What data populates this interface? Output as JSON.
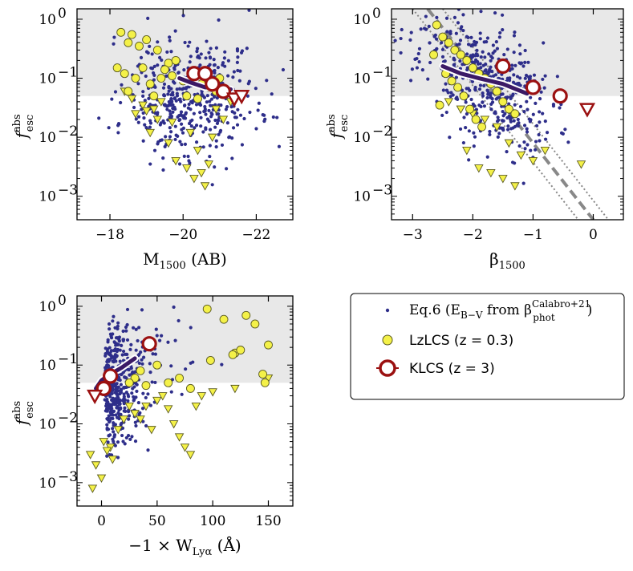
{
  "colors": {
    "shade": "#e8e8e8",
    "dots": "#2e2e8a",
    "lzlcs_fill": "#f4f148",
    "lzlcs_edge": "#5a5a20",
    "klcs": "#9b1111",
    "median_line": "#3b1a66",
    "dashed": "#888888"
  },
  "legend": {
    "entries": [
      {
        "label": "Eq.6 (E",
        "sub": "B−V",
        "mid": " from β",
        "sup": "Calabro+21",
        "sub2": "phot",
        "tail": ")",
        "marker": "dot-icon"
      },
      {
        "label": "LzLCS (z = 0.3)",
        "marker": "yellow-circle-icon"
      },
      {
        "label": "KLCS (z = 3)",
        "marker": "red-ring-icon"
      }
    ]
  },
  "chart_data": [
    {
      "type": "scatter",
      "ylabel": "f",
      "ylabel_sup": "abs",
      "ylabel_sub": "esc",
      "xlabel": "M",
      "xlabel_sub": "1500",
      "xlabel_tail": " (AB)",
      "xlim": [
        -17.1,
        -23.0
      ],
      "ylim": [
        0.0004,
        1.5
      ],
      "yscale": "log",
      "xticks": [
        -18,
        -20,
        -22
      ],
      "xtick_labels": [
        "−18",
        "−20",
        "−22"
      ],
      "yticks": [
        0.001,
        0.01,
        0.1,
        1
      ],
      "ytick_labels": [
        "10",
        "10",
        "10",
        "10"
      ],
      "ytick_exps": [
        "−3",
        "−2",
        "−1",
        "0"
      ],
      "shade_above": 0.05,
      "median_line": {
        "x": [
          -19.9,
          -20.2,
          -20.6,
          -21.0,
          -21.3
        ],
        "y": [
          0.1,
          0.085,
          0.07,
          0.067,
          0.065
        ]
      },
      "lzlcs_circles": {
        "x": [
          -18.2,
          -18.3,
          -18.5,
          -18.6,
          -18.8,
          -19.0,
          -19.1,
          -18.7,
          -18.9,
          -19.2,
          -19.4,
          -19.6,
          -19.8,
          -18.4,
          -18.5,
          -19.3,
          -19.5,
          -19.7,
          -20.3,
          -20.5,
          -20.7,
          -20.9,
          -20.1,
          -20.0,
          -21.0,
          -20.4
        ],
        "y": [
          0.15,
          0.6,
          0.4,
          0.55,
          0.35,
          0.45,
          0.08,
          0.1,
          0.15,
          0.05,
          0.1,
          0.18,
          0.2,
          0.12,
          0.06,
          0.3,
          0.14,
          0.11,
          0.12,
          0.08,
          0.07,
          0.06,
          0.05,
          0.09,
          0.1,
          0.045
        ]
      },
      "lzlcs_triangles": {
        "x": [
          -18.4,
          -18.6,
          -18.9,
          -19.2,
          -19.4,
          -19.1,
          -19.6,
          -19.8,
          -20.1,
          -20.3,
          -20.5,
          -20.7,
          -19.3,
          -19.0,
          -18.7,
          -20.4,
          -20.9,
          -21.1,
          -20.2,
          -20.6,
          -19.7,
          -20.8,
          -21.3
        ],
        "y": [
          0.06,
          0.045,
          0.035,
          0.03,
          0.04,
          0.012,
          0.008,
          0.004,
          0.003,
          0.002,
          0.0025,
          0.0035,
          0.02,
          0.028,
          0.025,
          0.006,
          0.03,
          0.02,
          0.012,
          0.0015,
          0.018,
          0.01,
          0.04
        ]
      },
      "klcs_circles": {
        "x": [
          -20.3,
          -20.6,
          -20.8,
          -21.1
        ],
        "y": [
          0.12,
          0.12,
          0.08,
          0.06
        ]
      },
      "klcs_triangles": {
        "x": [
          -21.4,
          -21.6
        ],
        "y": [
          0.045,
          0.05
        ]
      },
      "dots_seed": 11,
      "dots_n": 460,
      "dots_x_range": [
        -18.4,
        -22.4
      ],
      "dots_x_center": -20.2,
      "dots_x_spread": 0.9
    },
    {
      "type": "scatter",
      "ylabel": "f",
      "ylabel_sup": "abs",
      "ylabel_sub": "esc",
      "xlabel": "β",
      "xlabel_sub": "1500",
      "xlabel_tail": "",
      "xlim": [
        -3.35,
        0.5
      ],
      "ylim": [
        0.0004,
        1.5
      ],
      "yscale": "log",
      "xticks": [
        -3,
        -2,
        -1,
        0
      ],
      "xtick_labels": [
        "−3",
        "−2",
        "−1",
        "0"
      ],
      "yticks": [
        0.001,
        0.01,
        0.1,
        1
      ],
      "ytick_labels": [
        "10",
        "10",
        "10",
        "10"
      ],
      "ytick_exps": [
        "−3",
        "−2",
        "−1",
        "0"
      ],
      "shade_above": 0.05,
      "median_line": {
        "x": [
          -2.5,
          -2.2,
          -1.9,
          -1.5,
          -1.1
        ],
        "y": [
          0.16,
          0.12,
          0.1,
          0.08,
          0.055
        ]
      },
      "dashed_line": {
        "x": [
          -2.75,
          0.0
        ],
        "y": [
          1.5,
          0.0004
        ]
      },
      "dotted_lines": [
        {
          "x": [
            -2.5,
            0.25
          ],
          "y": [
            1.5,
            0.0004
          ]
        },
        {
          "x": [
            -3.0,
            -0.25
          ],
          "y": [
            1.5,
            0.0004
          ]
        }
      ],
      "lzlcs_circles": {
        "x": [
          -2.5,
          -2.4,
          -2.3,
          -2.2,
          -2.1,
          -2.0,
          -1.9,
          -1.8,
          -2.6,
          -2.45,
          -2.35,
          -2.25,
          -2.15,
          -1.7,
          -1.6,
          -2.55,
          -2.05,
          -1.95,
          -1.85,
          -2.65,
          -1.5,
          -1.4,
          -1.3
        ],
        "y": [
          0.5,
          0.4,
          0.3,
          0.25,
          0.2,
          0.15,
          0.12,
          0.1,
          0.8,
          0.12,
          0.09,
          0.07,
          0.05,
          0.08,
          0.06,
          0.035,
          0.03,
          0.02,
          0.015,
          0.25,
          0.04,
          0.03,
          0.025
        ]
      },
      "lzlcs_triangles": {
        "x": [
          -2.4,
          -2.2,
          -2.0,
          -1.8,
          -1.6,
          -1.4,
          -1.2,
          -1.0,
          -0.8,
          -1.9,
          -1.7,
          -1.5,
          -1.3,
          -2.1,
          -0.2
        ],
        "y": [
          0.04,
          0.03,
          0.025,
          0.02,
          0.015,
          0.008,
          0.005,
          0.004,
          0.006,
          0.003,
          0.0025,
          0.002,
          0.0015,
          0.006,
          0.0035
        ]
      },
      "klcs_circles": {
        "x": [
          -1.5,
          -1.0,
          -0.55
        ],
        "y": [
          0.16,
          0.07,
          0.05
        ]
      },
      "klcs_triangles": {
        "x": [
          -0.1
        ],
        "y": [
          0.03
        ]
      },
      "dots_seed": 23,
      "dots_n": 460,
      "dots_x_range": [
        -2.8,
        -0.2
      ],
      "dots_x_center": -1.8,
      "dots_x_spread": 0.55
    },
    {
      "type": "scatter",
      "ylabel": "f",
      "ylabel_sup": "abs",
      "ylabel_sub": "esc",
      "xlabel": "−1 × W",
      "xlabel_sub": "Lyα",
      "xlabel_tail": " (Å)",
      "xlim": [
        -22,
        172
      ],
      "ylim": [
        0.0004,
        1.5
      ],
      "yscale": "log",
      "xticks": [
        0,
        50,
        100,
        150
      ],
      "xtick_labels": [
        "0",
        "50",
        "100",
        "150"
      ],
      "yticks": [
        0.001,
        0.01,
        0.1,
        1
      ],
      "ytick_labels": [
        "10",
        "10",
        "10",
        "10"
      ],
      "ytick_exps": [
        "−3",
        "−2",
        "−1",
        "0"
      ],
      "shade_above": 0.05,
      "median_line": {
        "x": [
          -5,
          0,
          8,
          18,
          30
        ],
        "y": [
          0.04,
          0.055,
          0.07,
          0.09,
          0.13
        ]
      },
      "lzlcs_circles": {
        "x": [
          95,
          130,
          138,
          120,
          118,
          125,
          98,
          150,
          145,
          147,
          110,
          80,
          60,
          70,
          40,
          50,
          35,
          30,
          25
        ],
        "y": [
          0.9,
          0.7,
          0.5,
          0.16,
          0.15,
          0.18,
          0.12,
          0.22,
          0.07,
          0.05,
          0.6,
          0.04,
          0.05,
          0.06,
          0.045,
          0.1,
          0.08,
          0.06,
          0.05
        ]
      },
      "lzlcs_triangles": {
        "x": [
          -10,
          -5,
          2,
          8,
          15,
          20,
          30,
          40,
          50,
          55,
          60,
          65,
          70,
          75,
          80,
          85,
          90,
          100,
          120,
          150,
          45,
          35,
          25,
          10,
          5,
          0,
          -8
        ],
        "y": [
          0.003,
          0.002,
          0.005,
          0.004,
          0.008,
          0.012,
          0.015,
          0.02,
          0.025,
          0.03,
          0.018,
          0.01,
          0.006,
          0.004,
          0.003,
          0.02,
          0.03,
          0.035,
          0.04,
          0.06,
          0.008,
          0.012,
          0.02,
          0.0025,
          0.0035,
          0.0012,
          0.0008
        ]
      },
      "klcs_circles": {
        "x": [
          2,
          8,
          43
        ],
        "y": [
          0.04,
          0.065,
          0.23
        ]
      },
      "klcs_triangles": {
        "x": [
          -6
        ],
        "y": [
          0.03
        ]
      },
      "dots_seed": 37,
      "dots_n": 460,
      "dots_x_range": [
        -15,
        100
      ],
      "dots_x_center": 8,
      "dots_x_spread": 14
    }
  ]
}
